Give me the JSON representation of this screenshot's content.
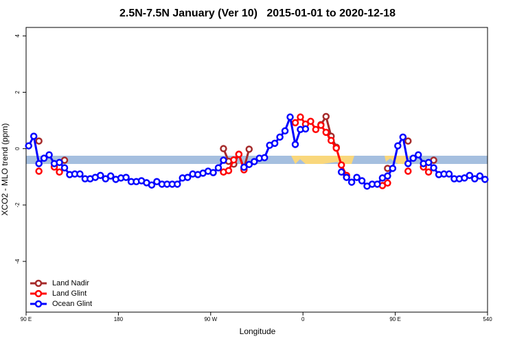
{
  "chart_data": {
    "type": "line",
    "title": "2.5N-7.5N January (Ver 10)   2015-01-01 to 2020-12-18",
    "x_label": "Longitude",
    "y_label": "XCO2 - MLO trend (ppm)",
    "xlim": [
      90,
      540
    ],
    "ylim": [
      -5.8,
      4.3
    ],
    "xticks": [
      {
        "value": 90,
        "label": "90 E"
      },
      180,
      {
        "value": 270,
        "label": "90 W"
      },
      {
        "value": 360,
        "label": "0"
      },
      {
        "value": 450,
        "label": "90 E"
      },
      540
    ],
    "yticks": [
      -4,
      -2,
      0,
      2,
      4
    ],
    "legend": "bottomleft",
    "x": [
      92.5,
      97.5,
      102.5,
      107.5,
      112.5,
      117.5,
      122.5,
      127.5,
      132.5,
      137.5,
      142.5,
      147.5,
      152.5,
      157.5,
      162.5,
      167.5,
      172.5,
      177.5,
      182.5,
      187.5,
      192.5,
      197.5,
      202.5,
      207.5,
      212.5,
      217.5,
      222.5,
      227.5,
      232.5,
      237.5,
      242.5,
      247.5,
      252.5,
      257.5,
      262.5,
      267.5,
      272.5,
      277.5,
      282.5,
      287.5,
      292.5,
      297.5,
      302.5,
      307.5,
      312.5,
      317.5,
      322.5,
      327.5,
      332.5,
      337.5,
      342.5,
      347.5,
      352.5,
      357.5,
      362.5,
      367.5,
      372.5,
      377.5,
      382.5,
      387.5,
      392.5,
      397.5,
      402.5,
      407.5,
      412.5,
      417.5,
      422.5,
      427.5,
      432.5,
      437.5,
      442.5,
      447.5,
      452.5,
      457.5,
      462.5,
      467.5,
      472.5,
      477.5,
      482.5,
      487.5,
      492.5,
      497.5,
      502.5,
      507.5,
      512.5,
      517.5,
      522.5,
      527.5,
      532.5,
      537.5
    ],
    "series": [
      {
        "name": "Land Nadir",
        "color": "#a52a2a",
        "values": [
          null,
          null,
          0.27,
          null,
          null,
          null,
          null,
          -0.41,
          null,
          null,
          null,
          null,
          null,
          null,
          null,
          null,
          null,
          null,
          null,
          null,
          null,
          null,
          null,
          null,
          null,
          null,
          null,
          null,
          null,
          null,
          null,
          null,
          null,
          null,
          null,
          null,
          null,
          null,
          0,
          -0.45,
          -0.55,
          -0.2,
          -0.7,
          -0.02,
          null,
          null,
          null,
          null,
          null,
          null,
          null,
          null,
          null,
          null,
          null,
          null,
          null,
          0.85,
          1.14,
          0.44,
          0.05,
          null,
          null,
          null,
          null,
          null,
          null,
          null,
          null,
          null,
          -0.7,
          null,
          null,
          null,
          0.27,
          null,
          null,
          null,
          null,
          -0.41,
          null,
          null,
          null,
          null,
          null,
          null,
          null,
          null,
          null,
          null
        ]
      },
      {
        "name": "Land Glint",
        "color": "#ff0000",
        "values": [
          null,
          null,
          -0.8,
          null,
          null,
          -0.65,
          -0.83,
          null,
          null,
          null,
          null,
          null,
          null,
          null,
          null,
          null,
          null,
          null,
          null,
          null,
          null,
          null,
          null,
          null,
          null,
          null,
          null,
          null,
          null,
          null,
          null,
          null,
          null,
          null,
          null,
          null,
          null,
          null,
          -0.83,
          -0.78,
          -0.4,
          -0.2,
          -0.75,
          null,
          null,
          null,
          null,
          null,
          null,
          null,
          null,
          null,
          0.92,
          1.12,
          0.87,
          0.97,
          0.68,
          0.83,
          0.58,
          0.29,
          0.02,
          -0.58,
          -0.95,
          null,
          null,
          null,
          null,
          null,
          null,
          -1.31,
          -1.22,
          null,
          null,
          null,
          -0.8,
          null,
          null,
          -0.65,
          -0.83,
          null,
          null,
          null,
          null,
          null,
          null,
          null,
          null,
          null,
          null,
          null
        ]
      },
      {
        "name": "Ocean Glint",
        "color": "#0000ff",
        "values": [
          0.1,
          0.44,
          -0.53,
          -0.34,
          -0.22,
          -0.53,
          -0.49,
          -0.68,
          -0.92,
          -0.9,
          -0.9,
          -1.07,
          -1.07,
          -1.02,
          -0.95,
          -1.07,
          -0.97,
          -1.09,
          -1.04,
          -1.02,
          -1.17,
          -1.17,
          -1.14,
          -1.21,
          -1.29,
          -1.17,
          -1.26,
          -1.26,
          -1.26,
          -1.26,
          -1.04,
          -1.02,
          -0.9,
          -0.92,
          -0.87,
          -0.8,
          -0.85,
          -0.68,
          -0.41,
          null,
          null,
          null,
          -0.66,
          -0.56,
          -0.46,
          -0.34,
          -0.32,
          0.12,
          0.19,
          0.41,
          0.63,
          1.12,
          0.15,
          0.68,
          0.7,
          null,
          null,
          null,
          null,
          null,
          null,
          -0.83,
          -1.02,
          -1.19,
          -1.02,
          -1.14,
          -1.33,
          -1.26,
          -1.26,
          -1.04,
          -0.97,
          -0.7,
          0.1,
          0.41,
          -0.53,
          -0.34,
          -0.22,
          -0.53,
          -0.49,
          -0.68,
          -0.92,
          -0.9,
          -0.9,
          -1.07,
          -1.07,
          -1.04,
          -0.95,
          -1.07,
          -0.97,
          -1.09
        ]
      }
    ]
  }
}
